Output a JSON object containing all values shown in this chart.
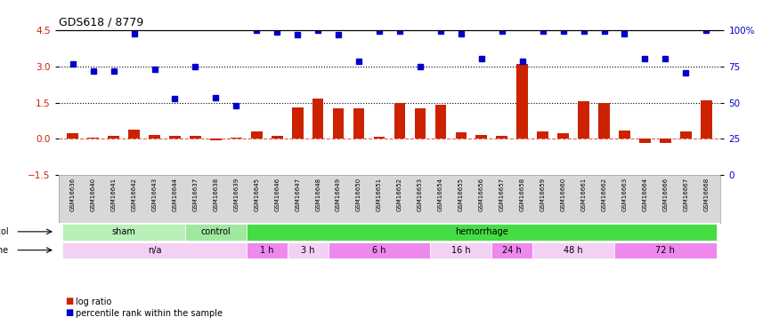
{
  "title": "GDS618 / 8779",
  "samples": [
    "GSM16636",
    "GSM16640",
    "GSM16641",
    "GSM16642",
    "GSM16643",
    "GSM16644",
    "GSM16637",
    "GSM16638",
    "GSM16639",
    "GSM16645",
    "GSM16646",
    "GSM16647",
    "GSM16648",
    "GSM16649",
    "GSM16650",
    "GSM16651",
    "GSM16652",
    "GSM16653",
    "GSM16654",
    "GSM16655",
    "GSM16656",
    "GSM16657",
    "GSM16658",
    "GSM16659",
    "GSM16660",
    "GSM16661",
    "GSM16662",
    "GSM16663",
    "GSM16664",
    "GSM16666",
    "GSM16667",
    "GSM16668"
  ],
  "log_ratio": [
    0.22,
    0.05,
    0.12,
    0.37,
    0.15,
    0.12,
    0.12,
    -0.07,
    0.07,
    0.3,
    0.12,
    1.3,
    1.65,
    1.25,
    1.25,
    0.08,
    1.5,
    1.25,
    1.4,
    0.27,
    0.15,
    0.12,
    3.1,
    0.3,
    0.22,
    1.55,
    1.5,
    0.35,
    -0.18,
    -0.17,
    0.3,
    1.6
  ],
  "percentile": [
    3.1,
    2.82,
    2.82,
    4.35,
    2.88,
    1.68,
    2.97,
    1.7,
    1.38,
    4.5,
    4.4,
    4.3,
    4.5,
    4.3,
    3.22,
    4.45,
    4.45,
    3.0,
    4.45,
    4.35,
    3.3,
    4.45,
    3.2,
    4.45,
    4.45,
    4.45,
    4.45,
    4.35,
    3.3,
    3.3,
    2.72,
    4.5
  ],
  "protocol_groups": [
    {
      "label": "sham",
      "start": 0,
      "end": 6,
      "color": "#b8f0b8"
    },
    {
      "label": "control",
      "start": 6,
      "end": 9,
      "color": "#a0e8a0"
    },
    {
      "label": "hemorrhage",
      "start": 9,
      "end": 32,
      "color": "#44dd44"
    }
  ],
  "time_groups": [
    {
      "label": "n/a",
      "start": 0,
      "end": 9,
      "color": "#f5d0f5"
    },
    {
      "label": "1 h",
      "start": 9,
      "end": 11,
      "color": "#ee88ee"
    },
    {
      "label": "3 h",
      "start": 11,
      "end": 13,
      "color": "#f5d0f5"
    },
    {
      "label": "6 h",
      "start": 13,
      "end": 18,
      "color": "#ee88ee"
    },
    {
      "label": "16 h",
      "start": 18,
      "end": 21,
      "color": "#f5d0f5"
    },
    {
      "label": "24 h",
      "start": 21,
      "end": 23,
      "color": "#ee88ee"
    },
    {
      "label": "48 h",
      "start": 23,
      "end": 27,
      "color": "#f5d0f5"
    },
    {
      "label": "72 h",
      "start": 27,
      "end": 32,
      "color": "#ee88ee"
    }
  ],
  "ylim": [
    -1.5,
    4.5
  ],
  "yticks_left": [
    -1.5,
    0.0,
    1.5,
    3.0,
    4.5
  ],
  "yticks_right": [
    0,
    25,
    50,
    75,
    100
  ],
  "hlines": [
    1.5,
    3.0
  ],
  "bar_color": "#cc2200",
  "dot_color": "#0000cc",
  "bar_width": 0.55
}
